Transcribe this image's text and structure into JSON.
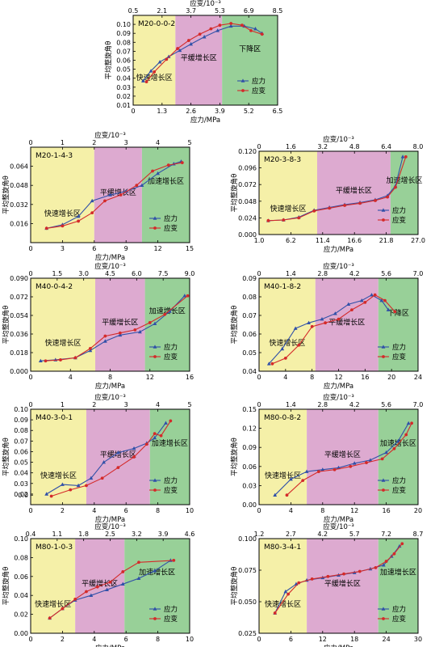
{
  "colors": {
    "stress": "#3050a8",
    "strain": "#d42a2a",
    "zone_fast": "#f5f0a8",
    "zone_slow": "#ddaad0",
    "zone_accel": "#98d098",
    "zone_drop": "#98d098"
  },
  "chart_data": [
    {
      "type": "line",
      "panel_label": "M20-0-0-2",
      "xlabel": "应力/MPa",
      "x2label": "应变/10⁻³",
      "ylabel": "平均整旋角θ",
      "xticks": [
        "0",
        "1.3",
        "2.6",
        "3.9",
        "5.2",
        "6.5"
      ],
      "xlim": [
        0,
        6.5
      ],
      "x2ticks": [
        "0.5",
        "2.1",
        "3.7",
        "5.3",
        "6.9",
        "8.5"
      ],
      "x2lim": [
        0.5,
        8.5
      ],
      "yticks": [
        "0.01",
        "0.02",
        "0.03",
        "0.04",
        "0.05",
        "0.06",
        "0.07",
        "0.08",
        "0.09",
        "0.10"
      ],
      "ylim": [
        0.01,
        0.11
      ],
      "zones": [
        {
          "label": "快速增长区",
          "kind": "fast",
          "from": 0,
          "to": 1.9
        },
        {
          "label": "平缓增长区",
          "kind": "slow",
          "from": 1.9,
          "to": 4.0
        },
        {
          "label": "下降区",
          "kind": "drop",
          "from": 4.0,
          "to": 6.5
        }
      ],
      "series": [
        {
          "name": "应力",
          "role": "stress",
          "x": [
            0.45,
            0.8,
            1.2,
            1.6,
            2.1,
            2.6,
            3.2,
            3.8,
            4.4,
            5.0,
            5.5,
            5.8
          ],
          "y": [
            0.037,
            0.048,
            0.058,
            0.064,
            0.071,
            0.078,
            0.086,
            0.093,
            0.098,
            0.098,
            0.095,
            0.09
          ]
        },
        {
          "name": "应变",
          "role": "strain",
          "x": [
            0.6,
            0.95,
            1.5,
            2.0,
            2.5,
            3.0,
            3.5,
            3.9,
            4.4,
            4.9,
            5.3,
            5.8
          ],
          "y": [
            0.036,
            0.047,
            0.061,
            0.073,
            0.082,
            0.089,
            0.095,
            0.099,
            0.101,
            0.099,
            0.093,
            0.089
          ]
        }
      ],
      "legend_pos": "bottom-right"
    },
    {
      "type": "line",
      "panel_label": "M20-1-4-3",
      "xlabel": "应力/MPa",
      "x2label": "应变/10⁻³",
      "ylabel": "平均整旋角θ",
      "xticks": [
        "0",
        "3",
        "6",
        "9",
        "12",
        "15"
      ],
      "xlim": [
        0,
        15
      ],
      "x2ticks": [
        "0",
        "1",
        "2",
        "3",
        "4",
        "5"
      ],
      "x2lim": [
        0,
        5
      ],
      "yticks": [
        "0.016",
        "0.032",
        "0.048",
        "0.064"
      ],
      "ylim": [
        0.0,
        0.08
      ],
      "zones": [
        {
          "label": "快速增长区",
          "kind": "fast",
          "from": 0,
          "to": 6.0
        },
        {
          "label": "平缓增长区",
          "kind": "slow",
          "from": 6.0,
          "to": 10.5
        },
        {
          "label": "加速增长区",
          "kind": "accel",
          "from": 10.5,
          "to": 15
        }
      ],
      "series": [
        {
          "name": "应力",
          "role": "stress",
          "x": [
            1.5,
            3.0,
            4.5,
            5.8,
            7.5,
            9.0,
            10.5,
            12.0,
            13.5,
            14.2
          ],
          "y": [
            0.012,
            0.015,
            0.022,
            0.035,
            0.04,
            0.043,
            0.048,
            0.058,
            0.066,
            0.068
          ]
        },
        {
          "name": "应变",
          "role": "strain",
          "x": [
            1.5,
            3.0,
            4.5,
            5.8,
            7.0,
            8.5,
            10.0,
            11.5,
            13.0,
            14.3
          ],
          "y": [
            0.012,
            0.014,
            0.018,
            0.025,
            0.035,
            0.04,
            0.048,
            0.06,
            0.065,
            0.067
          ]
        }
      ],
      "legend_pos": "bottom-right"
    },
    {
      "type": "line",
      "panel_label": "M20-3-8-3",
      "xlabel": "应力/MPa",
      "x2label": "应变/10⁻³",
      "ylabel": "平均整旋角θ",
      "xticks": [
        "1.0",
        "6.2",
        "11.4",
        "16.6",
        "21.8",
        "27.0"
      ],
      "xlim": [
        1.0,
        27.0
      ],
      "x2ticks": [
        "0",
        "1.6",
        "3.2",
        "4.8",
        "6.4",
        "8.0"
      ],
      "x2lim": [
        0,
        8.0
      ],
      "yticks": [
        "0.000",
        "0.024",
        "0.048",
        "0.072",
        "0.096",
        "0.120"
      ],
      "ylim": [
        0.0,
        0.12
      ],
      "zones": [
        {
          "label": "快速增长区",
          "kind": "fast",
          "from": 1.0,
          "to": 10.5
        },
        {
          "label": "平缓增长区",
          "kind": "slow",
          "from": 10.5,
          "to": 22.5
        },
        {
          "label": "加速增长区",
          "kind": "accel",
          "from": 22.5,
          "to": 27.0
        }
      ],
      "series": [
        {
          "name": "应力",
          "role": "stress",
          "x": [
            2.5,
            5.0,
            7.5,
            10.0,
            12.5,
            15.0,
            17.5,
            20.0,
            22.0,
            23.3,
            24.5
          ],
          "y": [
            0.02,
            0.021,
            0.025,
            0.035,
            0.039,
            0.043,
            0.046,
            0.05,
            0.056,
            0.07,
            0.112
          ]
        },
        {
          "name": "应变",
          "role": "strain",
          "x": [
            2.5,
            5.0,
            7.5,
            10.0,
            12.5,
            15.0,
            17.5,
            20.0,
            22.0,
            23.3,
            25.0
          ],
          "y": [
            0.02,
            0.021,
            0.024,
            0.034,
            0.038,
            0.042,
            0.045,
            0.049,
            0.054,
            0.068,
            0.112
          ]
        }
      ],
      "legend_pos": "bottom-right"
    },
    {
      "type": "line",
      "panel_label": "M40-0-4-2",
      "xlabel": "应力/MPa",
      "x2label": "应变/10⁻³",
      "ylabel": "平均整旋角θ",
      "xticks": [
        "0",
        "4",
        "8",
        "12",
        "16"
      ],
      "xlim": [
        0,
        16
      ],
      "x2ticks": [
        "0",
        "1.5",
        "3.0",
        "4.5",
        "6.0",
        "7.5",
        "9.0"
      ],
      "x2lim": [
        0,
        9.0
      ],
      "yticks": [
        "0.000",
        "0.018",
        "0.036",
        "0.054",
        "0.072",
        "0.090"
      ],
      "ylim": [
        0.0,
        0.09
      ],
      "zones": [
        {
          "label": "快速增长区",
          "kind": "fast",
          "from": 0,
          "to": 6.5
        },
        {
          "label": "平缓增长区",
          "kind": "slow",
          "from": 6.5,
          "to": 11.5
        },
        {
          "label": "加速增长区",
          "kind": "accel",
          "from": 11.5,
          "to": 16
        }
      ],
      "series": [
        {
          "name": "应力",
          "role": "stress",
          "x": [
            1.0,
            2.5,
            4.5,
            6.0,
            7.5,
            9.0,
            11.0,
            12.5,
            14.0,
            15.5
          ],
          "y": [
            0.01,
            0.011,
            0.013,
            0.02,
            0.029,
            0.035,
            0.038,
            0.046,
            0.058,
            0.073
          ]
        },
        {
          "name": "应变",
          "role": "strain",
          "x": [
            1.5,
            3.0,
            4.5,
            6.0,
            7.5,
            9.0,
            10.5,
            12.0,
            13.5,
            15.8
          ],
          "y": [
            0.01,
            0.011,
            0.013,
            0.022,
            0.034,
            0.037,
            0.04,
            0.047,
            0.055,
            0.073
          ]
        }
      ],
      "legend_pos": "bottom-right"
    },
    {
      "type": "line",
      "panel_label": "M40-1-8-2",
      "xlabel": "应力/MPa",
      "x2label": "应变/10⁻³",
      "ylabel": "平均整旋角θ",
      "xticks": [
        "0",
        "4",
        "8",
        "12",
        "16",
        "20",
        "24"
      ],
      "xlim": [
        0,
        24
      ],
      "x2ticks": [
        "0",
        "1.4",
        "2.8",
        "4.2",
        "5.6",
        "7.0"
      ],
      "x2lim": [
        0,
        7.0
      ],
      "yticks": [
        "0.04",
        "0.05",
        "0.06",
        "0.07",
        "0.08",
        "0.09"
      ],
      "ylim": [
        0.04,
        0.09
      ],
      "zones": [
        {
          "label": "快速增长区",
          "kind": "fast",
          "from": 0,
          "to": 8.5
        },
        {
          "label": "平缓增长区",
          "kind": "slow",
          "from": 8.5,
          "to": 18.0
        },
        {
          "label": "下降区",
          "kind": "drop",
          "from": 18.0,
          "to": 24
        }
      ],
      "series": [
        {
          "name": "应力",
          "role": "stress",
          "x": [
            1.5,
            3.5,
            5.5,
            7.5,
            9.5,
            11.5,
            13.5,
            15.5,
            17.0,
            18.5,
            19.5
          ],
          "y": [
            0.044,
            0.052,
            0.063,
            0.066,
            0.068,
            0.071,
            0.076,
            0.078,
            0.081,
            0.078,
            0.073
          ]
        },
        {
          "name": "应变",
          "role": "strain",
          "x": [
            2.0,
            4.0,
            6.0,
            8.0,
            10.0,
            12.0,
            14.0,
            16.0,
            17.5,
            19.0,
            20.5
          ],
          "y": [
            0.044,
            0.047,
            0.054,
            0.064,
            0.066,
            0.068,
            0.073,
            0.077,
            0.081,
            0.078,
            0.072
          ]
        }
      ],
      "legend_pos": "bottom-right"
    },
    {
      "type": "line",
      "panel_label": "M40-3-0-1",
      "xlabel": "应力/MPa",
      "x2label": "应变/10⁻³",
      "ylabel": "平均整旋角θ",
      "xticks": [
        "0",
        "2",
        "4",
        "6",
        "8",
        "10"
      ],
      "xlim": [
        0,
        10
      ],
      "x2ticks": [
        "0",
        "1",
        "2",
        "3",
        "4",
        "5"
      ],
      "x2lim": [
        0,
        5
      ],
      "yticks": [
        "0.0",
        "0.02",
        "0.03",
        "0.04",
        "0.05",
        "0.06",
        "0.07",
        "0.08",
        "0.09",
        "0.10"
      ],
      "ylim": [
        0.01,
        0.1
      ],
      "zones": [
        {
          "label": "快速增长区",
          "kind": "fast",
          "from": 0,
          "to": 3.5
        },
        {
          "label": "平缓增长区",
          "kind": "slow",
          "from": 3.5,
          "to": 7.5
        },
        {
          "label": "加速增长区",
          "kind": "accel",
          "from": 7.5,
          "to": 10
        }
      ],
      "series": [
        {
          "name": "应力",
          "role": "stress",
          "x": [
            1.0,
            2.0,
            3.0,
            3.8,
            4.6,
            5.5,
            6.5,
            7.3,
            7.8,
            8.5
          ],
          "y": [
            0.02,
            0.029,
            0.028,
            0.035,
            0.05,
            0.059,
            0.063,
            0.068,
            0.073,
            0.087
          ]
        },
        {
          "name": "应变",
          "role": "strain",
          "x": [
            1.3,
            2.5,
            3.5,
            4.5,
            5.5,
            6.5,
            7.3,
            7.8,
            8.2,
            8.8
          ],
          "y": [
            0.018,
            0.024,
            0.028,
            0.035,
            0.045,
            0.055,
            0.067,
            0.077,
            0.075,
            0.089
          ]
        }
      ],
      "legend_pos": "bottom-right"
    },
    {
      "type": "line",
      "panel_label": "M80-0-8-2",
      "xlabel": "应力/MPa",
      "x2label": "应变/10⁻³",
      "ylabel": "平均整旋角θ",
      "xticks": [
        "0",
        "4",
        "8",
        "12",
        "16",
        "20"
      ],
      "xlim": [
        0,
        20
      ],
      "x2ticks": [
        "0",
        "1.4",
        "2.8",
        "4.2",
        "5.6",
        "7.0"
      ],
      "x2lim": [
        0,
        7.0
      ],
      "yticks": [
        "0.00",
        "0.03",
        "0.06",
        "0.09",
        "0.12",
        "0.15"
      ],
      "ylim": [
        0.0,
        0.15
      ],
      "zones": [
        {
          "label": "快速增长区",
          "kind": "fast",
          "from": 0,
          "to": 6.0
        },
        {
          "label": "平缓增长区",
          "kind": "slow",
          "from": 6.0,
          "to": 15.0
        },
        {
          "label": "加速增长区",
          "kind": "accel",
          "from": 15.0,
          "to": 20
        }
      ],
      "series": [
        {
          "name": "应力",
          "role": "stress",
          "x": [
            2.0,
            4.0,
            6.0,
            8.0,
            10.0,
            12.0,
            14.0,
            16.0,
            17.5,
            18.8
          ],
          "y": [
            0.015,
            0.04,
            0.052,
            0.055,
            0.058,
            0.065,
            0.07,
            0.082,
            0.1,
            0.128
          ]
        },
        {
          "name": "应变",
          "role": "strain",
          "x": [
            3.5,
            5.5,
            7.5,
            9.5,
            11.5,
            13.5,
            15.5,
            17.0,
            18.5,
            19.2
          ],
          "y": [
            0.015,
            0.038,
            0.052,
            0.055,
            0.06,
            0.066,
            0.072,
            0.088,
            0.11,
            0.128
          ]
        }
      ],
      "legend_pos": "bottom-right"
    },
    {
      "type": "line",
      "panel_label": "M80-1-0-3",
      "xlabel": "应力/MPa",
      "x2label": "应变/10⁻³",
      "ylabel": "平均整旋角θ",
      "xticks": [
        "0",
        "2",
        "4",
        "6",
        "8",
        "10"
      ],
      "xlim": [
        0,
        10
      ],
      "x2ticks": [
        "0.4",
        "1.1",
        "1.8",
        "2.5",
        "3.2",
        "3.9",
        "4.6"
      ],
      "x2lim": [
        0.4,
        4.6
      ],
      "yticks": [
        "0.00",
        "0.02",
        "0.04",
        "0.06",
        "0.08",
        "0.10"
      ],
      "ylim": [
        0.0,
        0.1
      ],
      "zones": [
        {
          "label": "快速增长区",
          "kind": "fast",
          "from": 0,
          "to": 2.8
        },
        {
          "label": "平缓增长区",
          "kind": "slow",
          "from": 2.8,
          "to": 5.9
        },
        {
          "label": "加速增长区",
          "kind": "accel",
          "from": 5.9,
          "to": 10
        }
      ],
      "series": [
        {
          "name": "应力",
          "role": "stress",
          "x": [
            1.2,
            2.0,
            2.8,
            3.8,
            4.8,
            5.8,
            6.8,
            7.8,
            8.8
          ],
          "y": [
            0.016,
            0.026,
            0.035,
            0.04,
            0.046,
            0.052,
            0.058,
            0.066,
            0.077
          ]
        },
        {
          "name": "应变",
          "role": "strain",
          "x": [
            1.2,
            2.0,
            2.8,
            3.5,
            4.2,
            5.0,
            5.8,
            6.8,
            9.0
          ],
          "y": [
            0.016,
            0.026,
            0.036,
            0.044,
            0.049,
            0.054,
            0.065,
            0.075,
            0.077
          ]
        }
      ],
      "legend_pos": "bottom-right"
    },
    {
      "type": "line",
      "panel_label": "M80-3-4-1",
      "xlabel": "应力/MPa",
      "x2label": "应变/10⁻³",
      "ylabel": "平均整旋角θ",
      "xticks": [
        "0",
        "6",
        "12",
        "18",
        "24",
        "30"
      ],
      "xlim": [
        0,
        30
      ],
      "x2ticks": [
        "1.2",
        "2.7",
        "4.2",
        "5.7",
        "7.2",
        "8.7"
      ],
      "x2lim": [
        1.2,
        8.7
      ],
      "yticks": [
        "0.025",
        "0.050",
        "0.075",
        "0.100"
      ],
      "ylim": [
        0.025,
        0.1
      ],
      "zones": [
        {
          "label": "快速增长区",
          "kind": "fast",
          "from": 0,
          "to": 9.0
        },
        {
          "label": "平缓增长区",
          "kind": "slow",
          "from": 9.0,
          "to": 22.5
        },
        {
          "label": "加速增长区",
          "kind": "accel",
          "from": 22.5,
          "to": 30
        }
      ],
      "series": [
        {
          "name": "应力",
          "role": "stress",
          "x": [
            3.0,
            5.0,
            7.0,
            9.0,
            12.0,
            15.0,
            18.0,
            21.0,
            23.5,
            25.0,
            26.5
          ],
          "y": [
            0.041,
            0.058,
            0.064,
            0.067,
            0.069,
            0.071,
            0.073,
            0.076,
            0.079,
            0.086,
            0.094
          ]
        },
        {
          "name": "应变",
          "role": "strain",
          "x": [
            3.0,
            5.5,
            7.5,
            10.0,
            13.0,
            16.0,
            19.0,
            22.0,
            24.0,
            25.5,
            27.0
          ],
          "y": [
            0.041,
            0.056,
            0.065,
            0.068,
            0.07,
            0.072,
            0.074,
            0.077,
            0.082,
            0.088,
            0.096
          ]
        }
      ],
      "legend_pos": "bottom-right"
    }
  ]
}
